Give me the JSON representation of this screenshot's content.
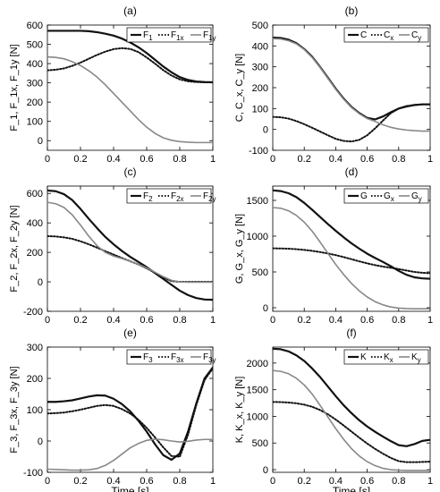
{
  "figure": {
    "xlabel_shared": "Time [s]"
  },
  "chart_data": [
    {
      "type": "line",
      "panel_label": "(a)",
      "ylabel": "F_1, F_1x, F_1y [N]",
      "xlim": [
        0,
        1
      ],
      "ylim": [
        -50,
        600
      ],
      "x_ticks": [
        "0",
        "0.2",
        "0.4",
        "0.6",
        "0.8",
        "1"
      ],
      "y_ticks": [
        0,
        100,
        200,
        300,
        400,
        500,
        600
      ],
      "y_tick_labels": [
        "0",
        "100",
        "200",
        "300",
        "400",
        "500",
        "600"
      ],
      "legend": {
        "position": "top-right",
        "entries": [
          {
            "style": "solid",
            "base": "F",
            "sub": "1"
          },
          {
            "style": "dotted",
            "base": "F",
            "sub": "1x"
          },
          {
            "style": "gray",
            "base": "F",
            "sub": "1y"
          }
        ]
      },
      "x": [
        0,
        0.05,
        0.1,
        0.15,
        0.2,
        0.25,
        0.3,
        0.35,
        0.4,
        0.45,
        0.5,
        0.55,
        0.6,
        0.65,
        0.7,
        0.75,
        0.8,
        0.85,
        0.9,
        0.95,
        1.0
      ],
      "series": [
        {
          "style": "solid",
          "values": [
            570,
            570,
            570,
            570,
            570,
            568,
            563,
            555,
            545,
            530,
            510,
            485,
            455,
            420,
            385,
            355,
            330,
            315,
            307,
            304,
            303
          ]
        },
        {
          "style": "dotted",
          "values": [
            365,
            368,
            375,
            388,
            405,
            425,
            445,
            462,
            475,
            480,
            476,
            460,
            432,
            400,
            366,
            338,
            318,
            308,
            304,
            303,
            303
          ]
        },
        {
          "style": "gray",
          "values": [
            435,
            432,
            425,
            410,
            390,
            363,
            330,
            290,
            245,
            200,
            155,
            110,
            70,
            38,
            15,
            2,
            -5,
            -8,
            -10,
            -10,
            -10
          ]
        }
      ]
    },
    {
      "type": "line",
      "panel_label": "(b)",
      "ylabel": "C, C_x, C_y [N]",
      "xlim": [
        0,
        1
      ],
      "ylim": [
        -100,
        500
      ],
      "x_ticks": [
        "0",
        "0.2",
        "0.4",
        "0.6",
        "0.8",
        "1"
      ],
      "y_ticks": [
        -100,
        0,
        100,
        200,
        300,
        400,
        500
      ],
      "y_tick_labels": [
        "-100",
        "0",
        "100",
        "200",
        "300",
        "400",
        "500"
      ],
      "legend": {
        "position": "top-right",
        "entries": [
          {
            "style": "solid",
            "base": "C",
            "sub": ""
          },
          {
            "style": "dotted",
            "base": "C",
            "sub": "x"
          },
          {
            "style": "gray",
            "base": "C",
            "sub": "y"
          }
        ]
      },
      "x": [
        0,
        0.05,
        0.1,
        0.15,
        0.2,
        0.25,
        0.3,
        0.35,
        0.4,
        0.45,
        0.5,
        0.55,
        0.6,
        0.65,
        0.7,
        0.75,
        0.8,
        0.85,
        0.9,
        0.95,
        1.0
      ],
      "series": [
        {
          "style": "solid",
          "values": [
            440,
            438,
            430,
            413,
            385,
            348,
            300,
            248,
            195,
            148,
            108,
            78,
            55,
            48,
            62,
            82,
            100,
            110,
            117,
            120,
            120
          ]
        },
        {
          "style": "dotted",
          "values": [
            60,
            58,
            52,
            40,
            25,
            8,
            -10,
            -28,
            -45,
            -55,
            -58,
            -50,
            -28,
            5,
            42,
            78,
            100,
            112,
            117,
            120,
            120
          ]
        },
        {
          "style": "gray",
          "values": [
            435,
            433,
            425,
            410,
            383,
            345,
            298,
            245,
            192,
            145,
            105,
            75,
            52,
            38,
            22,
            10,
            2,
            -3,
            -6,
            -8,
            -8
          ]
        }
      ]
    },
    {
      "type": "line",
      "panel_label": "(c)",
      "ylabel": "F_2, F_2x, F_2y [N]",
      "xlim": [
        0,
        1
      ],
      "ylim": [
        -200,
        650
      ],
      "x_ticks": [
        "0",
        "0.2",
        "0.4",
        "0.6",
        "0.8",
        "1"
      ],
      "y_ticks": [
        -200,
        0,
        200,
        400,
        600
      ],
      "y_tick_labels": [
        "-200",
        "0",
        "200",
        "400",
        "600"
      ],
      "legend": {
        "position": "top-right",
        "entries": [
          {
            "style": "solid",
            "base": "F",
            "sub": "2"
          },
          {
            "style": "dotted",
            "base": "F",
            "sub": "2x"
          },
          {
            "style": "gray",
            "base": "F",
            "sub": "2y"
          }
        ]
      },
      "x": [
        0,
        0.05,
        0.1,
        0.15,
        0.2,
        0.25,
        0.3,
        0.35,
        0.4,
        0.45,
        0.5,
        0.55,
        0.6,
        0.65,
        0.7,
        0.75,
        0.8,
        0.85,
        0.9,
        0.95,
        1.0
      ],
      "series": [
        {
          "style": "solid",
          "values": [
            620,
            615,
            595,
            555,
            495,
            428,
            365,
            305,
            255,
            210,
            170,
            135,
            100,
            60,
            20,
            -20,
            -60,
            -90,
            -110,
            -120,
            -122
          ]
        },
        {
          "style": "dotted",
          "values": [
            310,
            308,
            302,
            292,
            275,
            255,
            232,
            208,
            185,
            162,
            140,
            118,
            92,
            62,
            30,
            5,
            0,
            0,
            0,
            0,
            0
          ]
        },
        {
          "style": "gray",
          "values": [
            540,
            530,
            505,
            455,
            385,
            310,
            245,
            200,
            175,
            158,
            140,
            118,
            95,
            65,
            35,
            10,
            0,
            -2,
            -2,
            -2,
            -2
          ]
        }
      ]
    },
    {
      "type": "line",
      "panel_label": "(d)",
      "ylabel": "G, G_x, G_y [N]",
      "xlim": [
        0,
        1
      ],
      "ylim": [
        -50,
        1700
      ],
      "x_ticks": [
        "0",
        "0.2",
        "0.4",
        "0.6",
        "0.8",
        "1"
      ],
      "y_ticks": [
        0,
        500,
        1000,
        1500
      ],
      "y_tick_labels": [
        "0",
        "500",
        "1000",
        "1500"
      ],
      "legend": {
        "position": "top-right",
        "entries": [
          {
            "style": "solid",
            "base": "G",
            "sub": ""
          },
          {
            "style": "dotted",
            "base": "G",
            "sub": "x"
          },
          {
            "style": "gray",
            "base": "G",
            "sub": "y"
          }
        ]
      },
      "x": [
        0,
        0.05,
        0.1,
        0.15,
        0.2,
        0.25,
        0.3,
        0.35,
        0.4,
        0.45,
        0.5,
        0.55,
        0.6,
        0.65,
        0.7,
        0.75,
        0.8,
        0.85,
        0.9,
        0.95,
        1.0
      ],
      "series": [
        {
          "style": "solid",
          "values": [
            1640,
            1630,
            1600,
            1545,
            1465,
            1370,
            1270,
            1170,
            1075,
            985,
            900,
            825,
            755,
            695,
            640,
            580,
            515,
            460,
            425,
            410,
            405
          ]
        },
        {
          "style": "dotted",
          "values": [
            830,
            828,
            825,
            818,
            808,
            795,
            778,
            758,
            735,
            708,
            678,
            648,
            620,
            595,
            575,
            558,
            540,
            520,
            500,
            488,
            482
          ]
        },
        {
          "style": "gray",
          "values": [
            1400,
            1390,
            1355,
            1290,
            1195,
            1070,
            920,
            760,
            605,
            465,
            340,
            235,
            150,
            85,
            40,
            10,
            -5,
            -12,
            -15,
            -15,
            -15
          ]
        }
      ]
    },
    {
      "type": "line",
      "panel_label": "(e)",
      "ylabel": "F_3, F_3x, F_3y [N]",
      "xlabel": "Time [s]",
      "xlim": [
        0,
        1
      ],
      "ylim": [
        -100,
        300
      ],
      "x_ticks": [
        "0",
        "0.2",
        "0.4",
        "0.6",
        "0.8",
        "1"
      ],
      "y_ticks": [
        -100,
        0,
        100,
        200,
        300
      ],
      "y_tick_labels": [
        "-100",
        "0",
        "100",
        "200",
        "300"
      ],
      "legend": {
        "position": "top-right",
        "entries": [
          {
            "style": "solid",
            "base": "F",
            "sub": "3"
          },
          {
            "style": "dotted",
            "base": "F",
            "sub": "3x"
          },
          {
            "style": "gray",
            "base": "F",
            "sub": "3y"
          }
        ]
      },
      "x": [
        0,
        0.05,
        0.1,
        0.15,
        0.2,
        0.25,
        0.3,
        0.35,
        0.4,
        0.45,
        0.5,
        0.55,
        0.6,
        0.65,
        0.7,
        0.75,
        0.8,
        0.85,
        0.9,
        0.95,
        1.0
      ],
      "series": [
        {
          "style": "solid",
          "values": [
            125,
            125,
            127,
            130,
            136,
            142,
            146,
            145,
            135,
            118,
            95,
            65,
            30,
            -10,
            -45,
            -60,
            -40,
            30,
            120,
            200,
            235
          ]
        },
        {
          "style": "dotted",
          "values": [
            88,
            89,
            91,
            95,
            100,
            106,
            112,
            115,
            112,
            102,
            88,
            68,
            42,
            12,
            -20,
            -48,
            -50,
            20,
            115,
            195,
            232
          ]
        },
        {
          "style": "gray",
          "values": [
            -90,
            -91,
            -92,
            -93,
            -93,
            -92,
            -88,
            -78,
            -62,
            -42,
            -22,
            -8,
            2,
            6,
            4,
            0,
            -3,
            -1,
            3,
            5,
            5
          ]
        }
      ]
    },
    {
      "type": "line",
      "panel_label": "(f)",
      "ylabel": "K, K_x, K_y [N]",
      "xlabel": "Time [s]",
      "xlim": [
        0,
        1
      ],
      "ylim": [
        -50,
        2300
      ],
      "x_ticks": [
        "0",
        "0.2",
        "0.4",
        "0.6",
        "0.8",
        "1"
      ],
      "y_ticks": [
        0,
        500,
        1000,
        1500,
        2000
      ],
      "y_tick_labels": [
        "0",
        "500",
        "1000",
        "1500",
        "2000"
      ],
      "legend": {
        "position": "top-right",
        "entries": [
          {
            "style": "solid",
            "base": "K",
            "sub": ""
          },
          {
            "style": "dotted",
            "base": "K",
            "sub": "x"
          },
          {
            "style": "gray",
            "base": "K",
            "sub": "y"
          }
        ]
      },
      "x": [
        0,
        0.05,
        0.1,
        0.15,
        0.2,
        0.25,
        0.3,
        0.35,
        0.4,
        0.45,
        0.5,
        0.55,
        0.6,
        0.65,
        0.7,
        0.75,
        0.8,
        0.85,
        0.9,
        0.95,
        1.0
      ],
      "series": [
        {
          "style": "solid",
          "values": [
            2270,
            2260,
            2220,
            2145,
            2040,
            1900,
            1740,
            1560,
            1380,
            1210,
            1060,
            925,
            810,
            710,
            620,
            535,
            460,
            440,
            480,
            540,
            560
          ]
        },
        {
          "style": "dotted",
          "values": [
            1270,
            1268,
            1260,
            1245,
            1220,
            1180,
            1120,
            1040,
            940,
            830,
            715,
            600,
            490,
            390,
            300,
            220,
            160,
            140,
            140,
            145,
            150
          ]
        },
        {
          "style": "gray",
          "values": [
            1860,
            1845,
            1800,
            1715,
            1590,
            1420,
            1210,
            990,
            770,
            570,
            395,
            255,
            150,
            75,
            25,
            0,
            -10,
            -15,
            -15,
            -15,
            -15
          ]
        }
      ]
    }
  ]
}
